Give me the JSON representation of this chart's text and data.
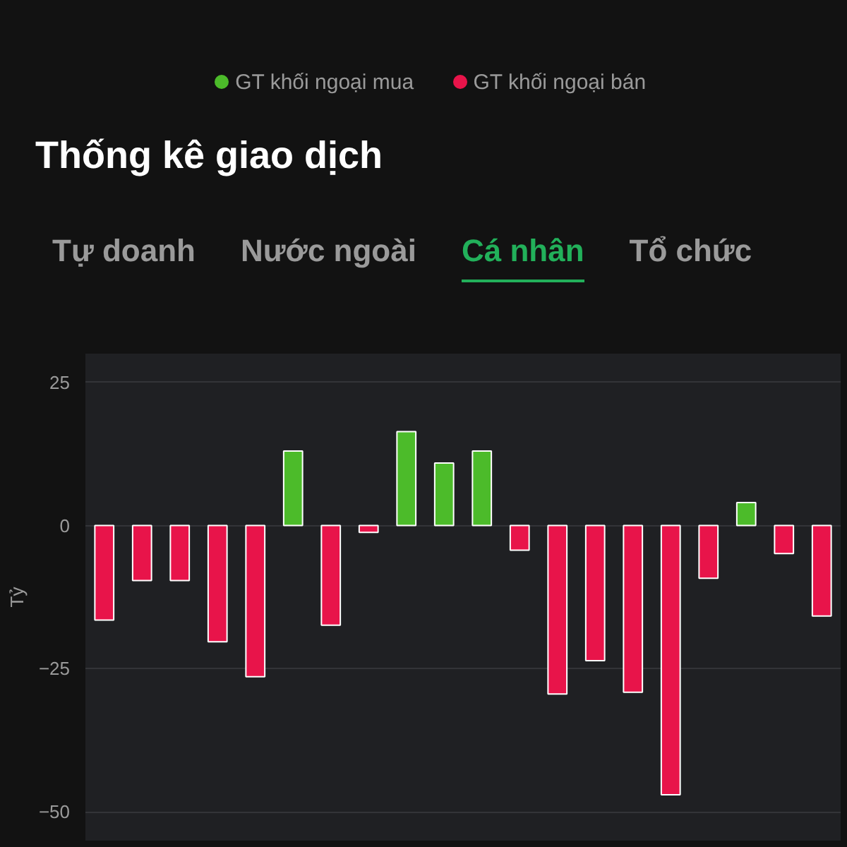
{
  "chart_data": {
    "type": "bar",
    "title": "Thống kê giao dịch",
    "ylabel": "Tỷ",
    "annotations": [
      "GT khối ngoại mua",
      "GT khối ngoại bán",
      "Tự doanh",
      "Nước ngoài",
      "Cá nhân",
      "Tổ chức"
    ],
    "categories": [
      null,
      null,
      null,
      null,
      null,
      null,
      null,
      null,
      null,
      null,
      null,
      null,
      null,
      null,
      null,
      null,
      null,
      null,
      null,
      null
    ],
    "values": [
      -16.5,
      -9.6,
      -9.6,
      -20.3,
      -26.4,
      13,
      -17.4,
      -1.2,
      16.4,
      10.9,
      13,
      -4.3,
      -29.4,
      -23.6,
      -29.1,
      -47,
      -9.2,
      4,
      -4.9,
      -15.8
    ],
    "colors": [
      "#e8144a",
      "#e8144a",
      "#e8144a",
      "#e8144a",
      "#e8144a",
      "#4cbb2a",
      "#e8144a",
      "#e8144a",
      "#4cbb2a",
      "#4cbb2a",
      "#4cbb2a",
      "#e8144a",
      "#e8144a",
      "#e8144a",
      "#e8144a",
      "#e8144a",
      "#e8144a",
      "#4cbb2a",
      "#e8144a",
      "#e8144a"
    ],
    "ylim": [
      -55,
      30
    ],
    "yticks": [
      -50,
      -25,
      0,
      25
    ],
    "grid": "y"
  }
}
